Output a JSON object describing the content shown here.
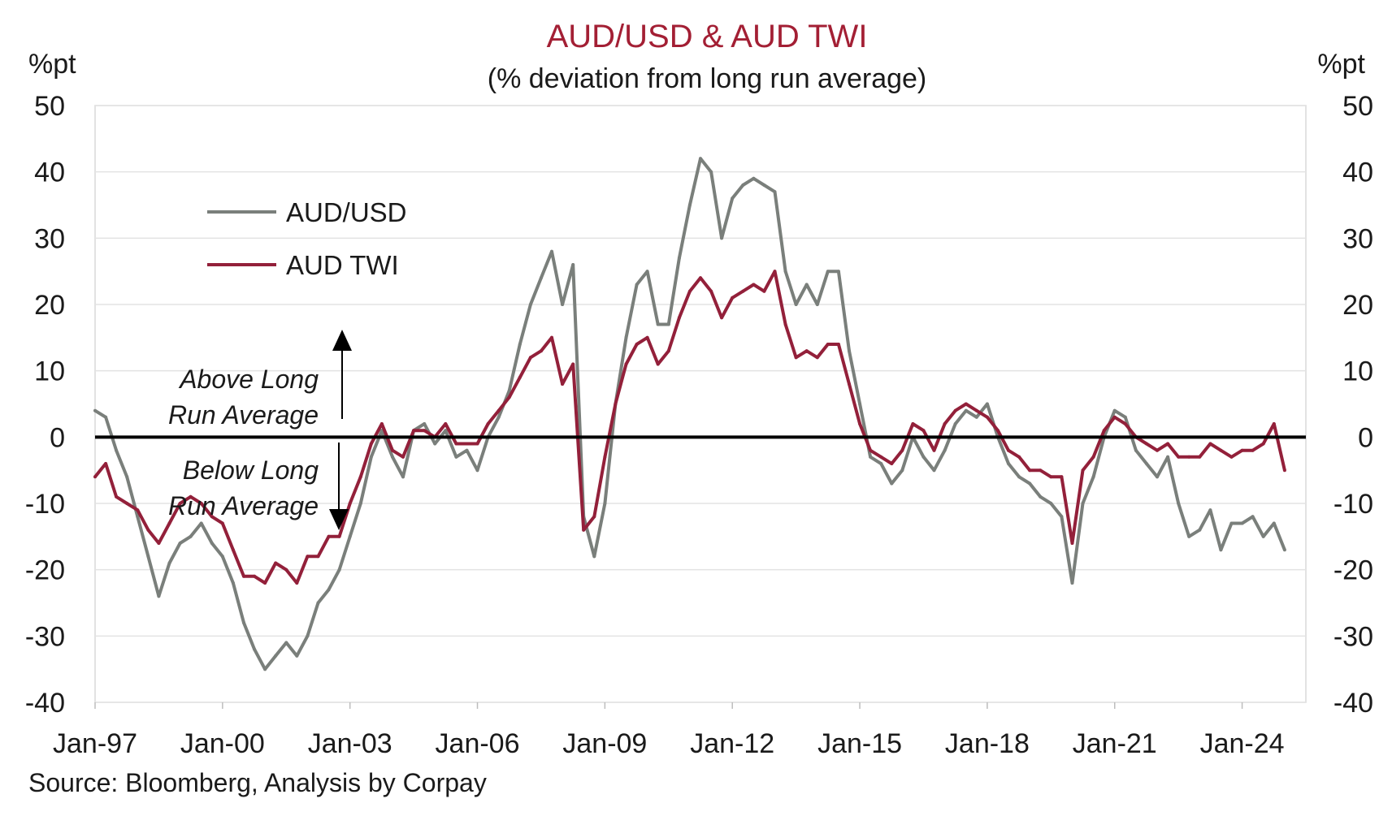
{
  "chart_data": {
    "type": "line",
    "title": "AUD/USD & AUD TWI",
    "subtitle": "(% deviation from long run average)",
    "ylabel_left": "%pt",
    "ylabel_right": "%pt",
    "ylim": [
      -40,
      50
    ],
    "xlim": [
      1997.0,
      2025.5
    ],
    "y_ticks": [
      "50",
      "40",
      "30",
      "20",
      "10",
      "0",
      "-10",
      "-20",
      "-30",
      "-40"
    ],
    "x_ticks": [
      "Jan-97",
      "Jan-00",
      "Jan-03",
      "Jan-06",
      "Jan-09",
      "Jan-12",
      "Jan-15",
      "Jan-18",
      "Jan-21",
      "Jan-24"
    ],
    "grid": true,
    "zero_line": true,
    "legend_position": "top-left",
    "colors": {
      "audusd": "#7a7f7b",
      "twi": "#93203a",
      "zero_line": "#000000",
      "title": "#a31f34"
    },
    "annotations": {
      "above_line1": "Above Long",
      "above_line2": "Run Average",
      "below_line1": "Below Long",
      "below_line2": "Run Average"
    },
    "source": "Source: Bloomberg, Analysis by Corpay",
    "series": [
      {
        "name": "AUD/USD",
        "key": "audusd",
        "x": [
          1997.0,
          1997.25,
          1997.5,
          1997.75,
          1998.0,
          1998.25,
          1998.5,
          1998.75,
          1999.0,
          1999.25,
          1999.5,
          1999.75,
          2000.0,
          2000.25,
          2000.5,
          2000.75,
          2001.0,
          2001.25,
          2001.5,
          2001.75,
          2002.0,
          2002.25,
          2002.5,
          2002.75,
          2003.0,
          2003.25,
          2003.5,
          2003.75,
          2004.0,
          2004.25,
          2004.5,
          2004.75,
          2005.0,
          2005.25,
          2005.5,
          2005.75,
          2006.0,
          2006.25,
          2006.5,
          2006.75,
          2007.0,
          2007.25,
          2007.5,
          2007.75,
          2008.0,
          2008.25,
          2008.5,
          2008.75,
          2009.0,
          2009.25,
          2009.5,
          2009.75,
          2010.0,
          2010.25,
          2010.5,
          2010.75,
          2011.0,
          2011.25,
          2011.5,
          2011.75,
          2012.0,
          2012.25,
          2012.5,
          2012.75,
          2013.0,
          2013.25,
          2013.5,
          2013.75,
          2014.0,
          2014.25,
          2014.5,
          2014.75,
          2015.0,
          2015.25,
          2015.5,
          2015.75,
          2016.0,
          2016.25,
          2016.5,
          2016.75,
          2017.0,
          2017.25,
          2017.5,
          2017.75,
          2018.0,
          2018.25,
          2018.5,
          2018.75,
          2019.0,
          2019.25,
          2019.5,
          2019.75,
          2020.0,
          2020.25,
          2020.5,
          2020.75,
          2021.0,
          2021.25,
          2021.5,
          2021.75,
          2022.0,
          2022.25,
          2022.5,
          2022.75,
          2023.0,
          2023.25,
          2023.5,
          2023.75,
          2024.0,
          2024.25,
          2024.5,
          2024.75,
          2025.0
        ],
        "values": [
          4,
          3,
          -2,
          -6,
          -12,
          -18,
          -24,
          -19,
          -16,
          -15,
          -13,
          -16,
          -18,
          -22,
          -28,
          -32,
          -35,
          -33,
          -31,
          -33,
          -30,
          -25,
          -23,
          -20,
          -15,
          -10,
          -3,
          1,
          -3,
          -6,
          1,
          2,
          -1,
          1,
          -3,
          -2,
          -5,
          0,
          3,
          7,
          14,
          20,
          24,
          28,
          20,
          26,
          -12,
          -18,
          -10,
          5,
          15,
          23,
          25,
          17,
          17,
          27,
          35,
          42,
          40,
          30,
          36,
          38,
          39,
          38,
          37,
          25,
          20,
          23,
          20,
          25,
          25,
          13,
          5,
          -3,
          -4,
          -7,
          -5,
          0,
          -3,
          -5,
          -2,
          2,
          4,
          3,
          5,
          0,
          -4,
          -6,
          -7,
          -9,
          -10,
          -12,
          -22,
          -10,
          -6,
          0,
          4,
          3,
          -2,
          -4,
          -6,
          -3,
          -10,
          -15,
          -14,
          -11,
          -17,
          -13,
          -13,
          -12,
          -15,
          -13,
          -17
        ]
      },
      {
        "name": "AUD TWI",
        "key": "twi",
        "x": [
          1997.0,
          1997.25,
          1997.5,
          1997.75,
          1998.0,
          1998.25,
          1998.5,
          1998.75,
          1999.0,
          1999.25,
          1999.5,
          1999.75,
          2000.0,
          2000.25,
          2000.5,
          2000.75,
          2001.0,
          2001.25,
          2001.5,
          2001.75,
          2002.0,
          2002.25,
          2002.5,
          2002.75,
          2003.0,
          2003.25,
          2003.5,
          2003.75,
          2004.0,
          2004.25,
          2004.5,
          2004.75,
          2005.0,
          2005.25,
          2005.5,
          2005.75,
          2006.0,
          2006.25,
          2006.5,
          2006.75,
          2007.0,
          2007.25,
          2007.5,
          2007.75,
          2008.0,
          2008.25,
          2008.5,
          2008.75,
          2009.0,
          2009.25,
          2009.5,
          2009.75,
          2010.0,
          2010.25,
          2010.5,
          2010.75,
          2011.0,
          2011.25,
          2011.5,
          2011.75,
          2012.0,
          2012.25,
          2012.5,
          2012.75,
          2013.0,
          2013.25,
          2013.5,
          2013.75,
          2014.0,
          2014.25,
          2014.5,
          2014.75,
          2015.0,
          2015.25,
          2015.5,
          2015.75,
          2016.0,
          2016.25,
          2016.5,
          2016.75,
          2017.0,
          2017.25,
          2017.5,
          2017.75,
          2018.0,
          2018.25,
          2018.5,
          2018.75,
          2019.0,
          2019.25,
          2019.5,
          2019.75,
          2020.0,
          2020.25,
          2020.5,
          2020.75,
          2021.0,
          2021.25,
          2021.5,
          2021.75,
          2022.0,
          2022.25,
          2022.5,
          2022.75,
          2023.0,
          2023.25,
          2023.5,
          2023.75,
          2024.0,
          2024.25,
          2024.5,
          2024.75,
          2025.0
        ],
        "values": [
          -6,
          -4,
          -9,
          -10,
          -11,
          -14,
          -16,
          -13,
          -10,
          -9,
          -10,
          -12,
          -13,
          -17,
          -21,
          -21,
          -22,
          -19,
          -20,
          -22,
          -18,
          -18,
          -15,
          -15,
          -10,
          -6,
          -1,
          2,
          -2,
          -3,
          1,
          1,
          0,
          2,
          -1,
          -1,
          -1,
          2,
          4,
          6,
          9,
          12,
          13,
          15,
          8,
          11,
          -14,
          -12,
          -3,
          5,
          11,
          14,
          15,
          11,
          13,
          18,
          22,
          24,
          22,
          18,
          21,
          22,
          23,
          22,
          25,
          17,
          12,
          13,
          12,
          14,
          14,
          8,
          2,
          -2,
          -3,
          -4,
          -2,
          2,
          1,
          -2,
          2,
          4,
          5,
          4,
          3,
          1,
          -2,
          -3,
          -5,
          -5,
          -6,
          -6,
          -16,
          -5,
          -3,
          1,
          3,
          2,
          0,
          -1,
          -2,
          -1,
          -3,
          -3,
          -3,
          -1,
          -2,
          -3,
          -2,
          -2,
          -1,
          2,
          -5
        ]
      }
    ]
  }
}
